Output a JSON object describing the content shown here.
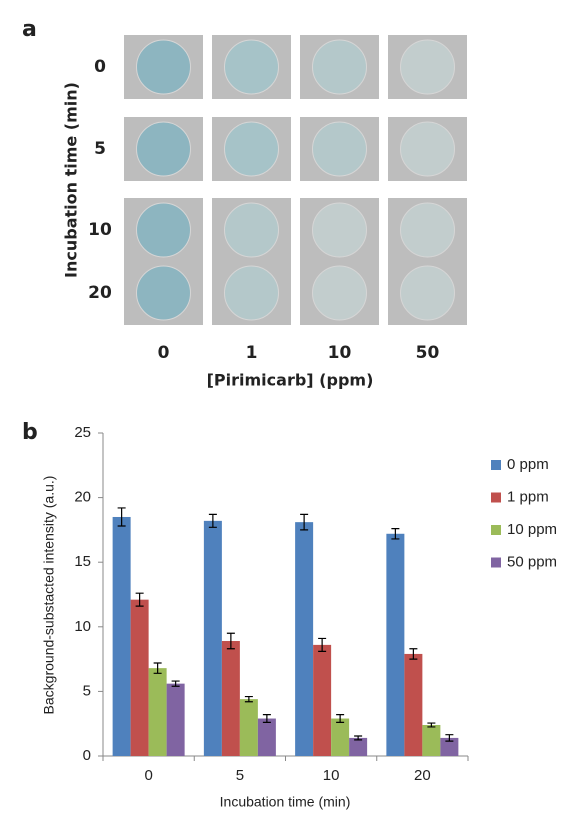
{
  "panel_a": {
    "label": "a",
    "y_label": "Incubation time (min)",
    "rows": [
      "0",
      "5",
      "10",
      "20"
    ],
    "columns": [
      "0",
      "1",
      "10",
      "50"
    ],
    "x_label": "[Pirimicarb] (ppm)"
  },
  "chart_data": {
    "type": "bar",
    "label": "b",
    "x_label": "Incubation time (min)",
    "y_label": "Background-substacted intensity (a.u.)",
    "categories": [
      "0",
      "5",
      "10",
      "20"
    ],
    "series": [
      {
        "name": "0 ppm",
        "color": "#4f81bd",
        "values": [
          18.5,
          18.2,
          18.1,
          17.2
        ],
        "errors": [
          0.7,
          0.5,
          0.6,
          0.4
        ]
      },
      {
        "name": "1 ppm",
        "color": "#c0504d",
        "values": [
          12.1,
          8.9,
          8.6,
          7.9
        ],
        "errors": [
          0.5,
          0.6,
          0.5,
          0.4
        ]
      },
      {
        "name": "10 ppm",
        "color": "#9bbb59",
        "values": [
          6.8,
          4.4,
          2.9,
          2.4
        ],
        "errors": [
          0.4,
          0.2,
          0.3,
          0.15
        ]
      },
      {
        "name": "50 ppm",
        "color": "#8064a2",
        "values": [
          5.6,
          2.9,
          1.4,
          1.4
        ],
        "errors": [
          0.2,
          0.3,
          0.15,
          0.25
        ]
      }
    ],
    "ylim": [
      0,
      25
    ],
    "yticks": [
      0,
      5,
      10,
      15,
      20,
      25
    ],
    "grid": false,
    "legend": "right"
  }
}
